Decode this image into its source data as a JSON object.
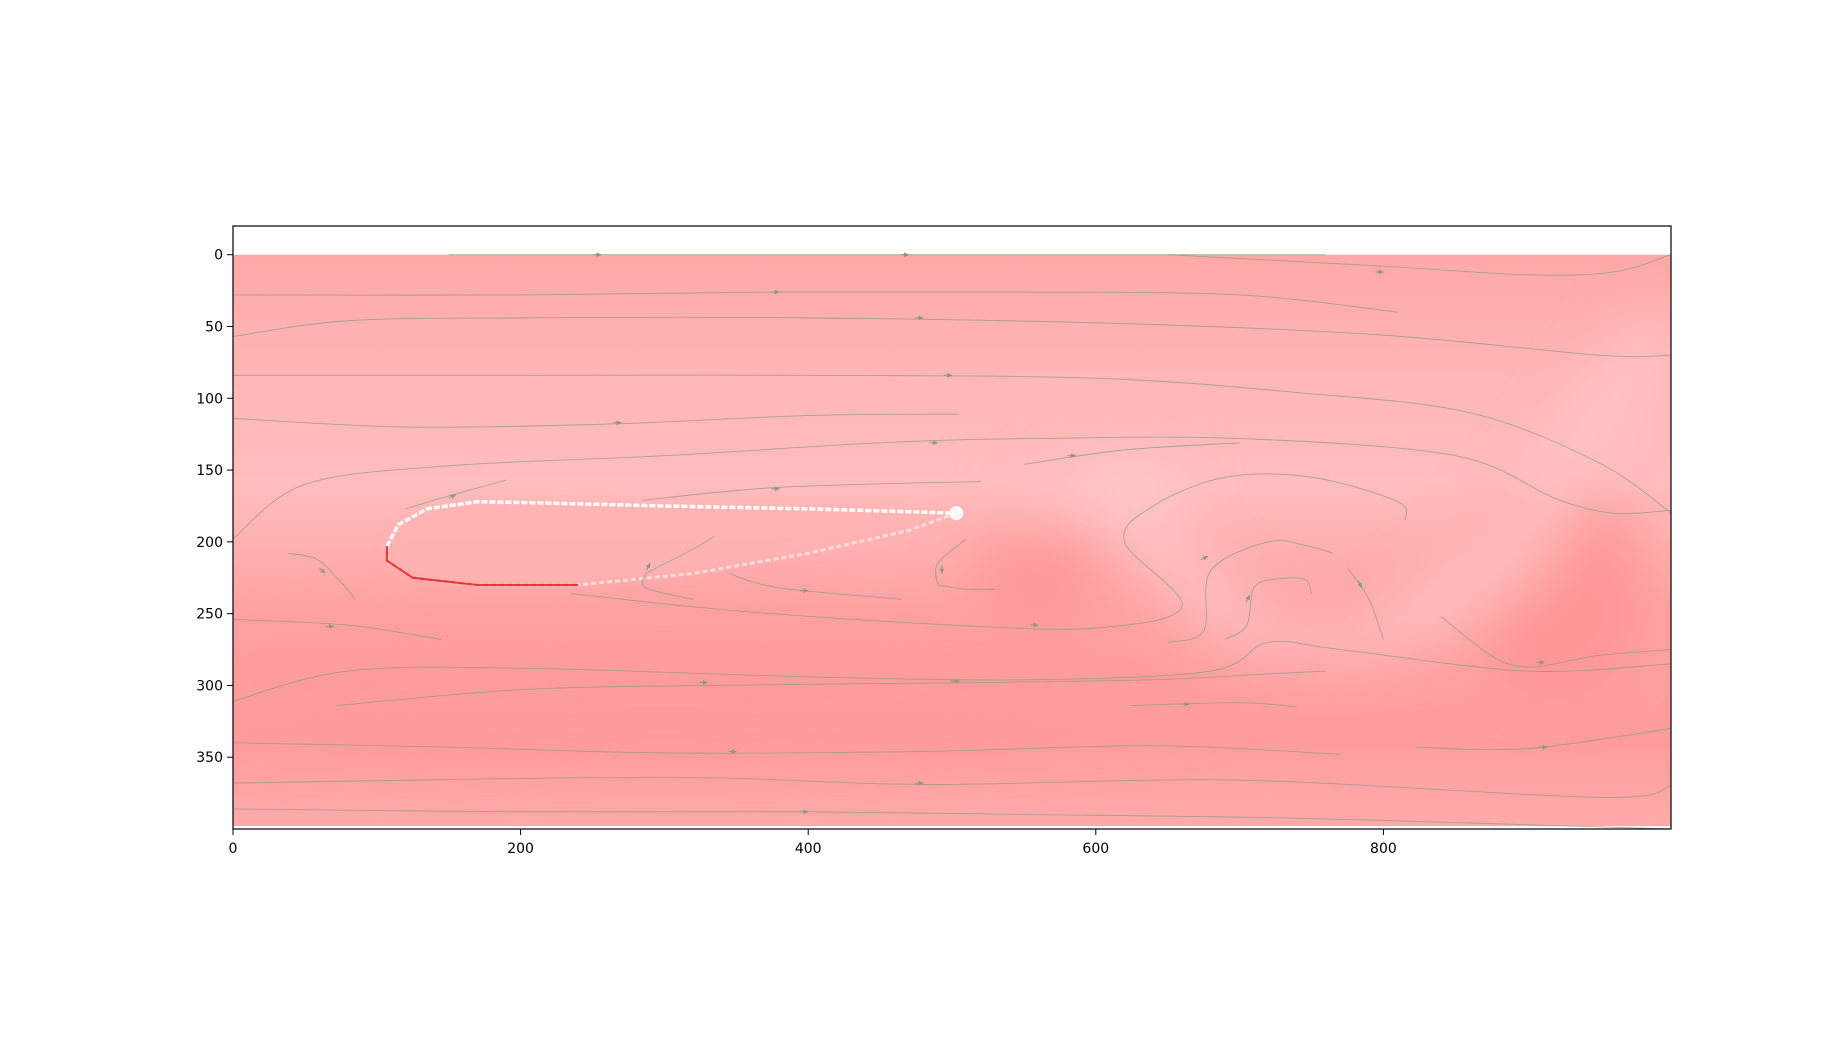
{
  "chart_data": {
    "type": "heatmap",
    "title": "",
    "xlabel": "",
    "ylabel": "",
    "xlim": [
      0,
      1000
    ],
    "ylim": [
      400,
      -20
    ],
    "y_inverted": true,
    "grid": false,
    "legend": "none",
    "field_extent": {
      "x": [
        0,
        1000
      ],
      "y": [
        0,
        398
      ]
    },
    "x_ticks": [
      {
        "value": 0,
        "label": "0"
      },
      {
        "value": 200,
        "label": "200"
      },
      {
        "value": 400,
        "label": "400"
      },
      {
        "value": 600,
        "label": "600"
      },
      {
        "value": 800,
        "label": "800"
      }
    ],
    "y_ticks": [
      {
        "value": 0,
        "label": "0"
      },
      {
        "value": 50,
        "label": "50"
      },
      {
        "value": 100,
        "label": "100"
      },
      {
        "value": 150,
        "label": "150"
      },
      {
        "value": 200,
        "label": "200"
      },
      {
        "value": 250,
        "label": "250"
      },
      {
        "value": 300,
        "label": "300"
      },
      {
        "value": 350,
        "label": "350"
      }
    ],
    "colors": {
      "field_light": "#ffbdbd",
      "field_mid": "#ffa9a9",
      "field_dark": "#ff9898",
      "streamline": "#8a9a86",
      "airfoil_edge": "#e02020"
    },
    "airfoil": {
      "leading_edge": [
        107,
        203
      ],
      "trailing_edge": [
        503,
        180
      ],
      "upper": [
        [
          107,
          203
        ],
        [
          115,
          188
        ],
        [
          135,
          177
        ],
        [
          170,
          172
        ],
        [
          220,
          173
        ],
        [
          300,
          175
        ],
        [
          400,
          177
        ],
        [
          470,
          179
        ],
        [
          503,
          180
        ]
      ],
      "lower": [
        [
          503,
          180
        ],
        [
          470,
          192
        ],
        [
          400,
          208
        ],
        [
          320,
          222
        ],
        [
          240,
          230
        ],
        [
          170,
          230
        ],
        [
          125,
          225
        ],
        [
          107,
          213
        ],
        [
          107,
          203
        ]
      ]
    },
    "streamlines": [
      [
        [
          150,
          0
        ],
        [
          320,
          0
        ],
        [
          480,
          0
        ],
        [
          620,
          0
        ],
        [
          760,
          0
        ]
      ],
      [
        [
          650,
          0
        ],
        [
          800,
          8
        ],
        [
          900,
          14
        ],
        [
          960,
          12
        ],
        [
          1000,
          0
        ]
      ],
      [
        [
          0,
          28
        ],
        [
          200,
          28
        ],
        [
          380,
          26
        ],
        [
          550,
          26
        ],
        [
          700,
          28
        ],
        [
          810,
          40
        ]
      ],
      [
        [
          0,
          57
        ],
        [
          80,
          46
        ],
        [
          200,
          44
        ],
        [
          400,
          44
        ],
        [
          620,
          48
        ],
        [
          800,
          56
        ],
        [
          950,
          70
        ],
        [
          1000,
          70
        ]
      ],
      [
        [
          0,
          84
        ],
        [
          200,
          84
        ],
        [
          400,
          84
        ],
        [
          600,
          86
        ],
        [
          740,
          96
        ],
        [
          860,
          110
        ],
        [
          950,
          145
        ],
        [
          1000,
          180
        ]
      ],
      [
        [
          0,
          114
        ],
        [
          120,
          120
        ],
        [
          260,
          118
        ],
        [
          400,
          112
        ],
        [
          505,
          111
        ]
      ],
      [
        [
          0,
          198
        ],
        [
          50,
          160
        ],
        [
          150,
          147
        ],
        [
          300,
          140
        ],
        [
          450,
          131
        ],
        [
          560,
          128
        ],
        [
          700,
          128
        ],
        [
          850,
          140
        ],
        [
          920,
          170
        ],
        [
          960,
          180
        ],
        [
          1000,
          178
        ]
      ],
      [
        [
          550,
          146
        ],
        [
          620,
          136
        ],
        [
          700,
          131
        ]
      ],
      [
        [
          38,
          208
        ],
        [
          58,
          212
        ],
        [
          75,
          228
        ],
        [
          85,
          240
        ]
      ],
      [
        [
          120,
          177
        ],
        [
          150,
          168
        ],
        [
          190,
          157
        ]
      ],
      [
        [
          285,
          171
        ],
        [
          380,
          162
        ],
        [
          520,
          158
        ]
      ],
      [
        [
          490,
          230
        ],
        [
          490,
          215
        ],
        [
          510,
          198
        ]
      ],
      [
        [
          490,
          230
        ],
        [
          510,
          233
        ],
        [
          530,
          233
        ]
      ],
      [
        [
          287,
          222
        ],
        [
          320,
          205
        ],
        [
          335,
          196
        ]
      ],
      [
        [
          287,
          222
        ],
        [
          287,
          232
        ],
        [
          320,
          240
        ]
      ],
      [
        [
          345,
          222
        ],
        [
          380,
          232
        ],
        [
          465,
          240
        ]
      ],
      [
        [
          235,
          236
        ],
        [
          350,
          248
        ],
        [
          500,
          258
        ],
        [
          600,
          260
        ],
        [
          660,
          245
        ],
        [
          620,
          200
        ],
        [
          640,
          175
        ],
        [
          690,
          155
        ],
        [
          750,
          155
        ],
        [
          810,
          172
        ],
        [
          815,
          185
        ]
      ],
      [
        [
          650,
          270
        ],
        [
          675,
          262
        ],
        [
          680,
          220
        ],
        [
          720,
          200
        ],
        [
          748,
          203
        ],
        [
          765,
          208
        ]
      ],
      [
        [
          690,
          268
        ],
        [
          705,
          258
        ],
        [
          710,
          232
        ],
        [
          725,
          226
        ],
        [
          745,
          226
        ],
        [
          750,
          236
        ]
      ],
      [
        [
          775,
          218
        ],
        [
          790,
          240
        ],
        [
          800,
          268
        ]
      ],
      [
        [
          0,
          254
        ],
        [
          80,
          258
        ],
        [
          145,
          268
        ]
      ],
      [
        [
          0,
          311
        ],
        [
          80,
          290
        ],
        [
          200,
          288
        ],
        [
          400,
          294
        ],
        [
          555,
          296
        ],
        [
          680,
          290
        ],
        [
          720,
          270
        ],
        [
          770,
          275
        ],
        [
          900,
          290
        ],
        [
          1000,
          285
        ]
      ],
      [
        [
          72,
          314
        ],
        [
          200,
          303
        ],
        [
          330,
          300
        ],
        [
          520,
          298
        ],
        [
          640,
          296
        ],
        [
          720,
          292
        ],
        [
          760,
          290
        ]
      ],
      [
        [
          625,
          314
        ],
        [
          700,
          312
        ],
        [
          740,
          315
        ]
      ],
      [
        [
          840,
          252
        ],
        [
          890,
          286
        ],
        [
          950,
          279
        ],
        [
          1000,
          275
        ]
      ],
      [
        [
          0,
          340
        ],
        [
          150,
          343
        ],
        [
          300,
          347
        ],
        [
          480,
          346
        ],
        [
          640,
          342
        ],
        [
          770,
          348
        ]
      ],
      [
        [
          823,
          343
        ],
        [
          900,
          344
        ],
        [
          1000,
          330
        ]
      ],
      [
        [
          0,
          368
        ],
        [
          300,
          364
        ],
        [
          480,
          369
        ],
        [
          700,
          366
        ],
        [
          950,
          378
        ],
        [
          1000,
          370
        ]
      ],
      [
        [
          0,
          386
        ],
        [
          200,
          388
        ],
        [
          400,
          388
        ],
        [
          560,
          390
        ],
        [
          720,
          392
        ],
        [
          900,
          397
        ],
        [
          1000,
          400
        ]
      ]
    ],
    "arrows": [
      {
        "at": [
          256,
          0
        ],
        "dir": [
          1,
          0
        ]
      },
      {
        "at": [
          470,
          0
        ],
        "dir": [
          1,
          0
        ]
      },
      {
        "at": [
          800,
          12
        ],
        "dir": [
          1,
          0
        ]
      },
      {
        "at": [
          380,
          26
        ],
        "dir": [
          1,
          0
        ]
      },
      {
        "at": [
          480,
          44
        ],
        "dir": [
          1,
          0
        ]
      },
      {
        "at": [
          500,
          84
        ],
        "dir": [
          1,
          0
        ]
      },
      {
        "at": [
          270,
          117
        ],
        "dir": [
          1,
          0
        ]
      },
      {
        "at": [
          490,
          131
        ],
        "dir": [
          1,
          0
        ]
      },
      {
        "at": [
          586,
          140
        ],
        "dir": [
          1,
          0
        ]
      },
      {
        "at": [
          64,
          222
        ],
        "dir": [
          1,
          1
        ]
      },
      {
        "at": [
          155,
          167
        ],
        "dir": [
          1,
          -0.5
        ]
      },
      {
        "at": [
          380,
          163
        ],
        "dir": [
          1,
          0
        ]
      },
      {
        "at": [
          493,
          222
        ],
        "dir": [
          0,
          1
        ]
      },
      {
        "at": [
          290,
          215
        ],
        "dir": [
          0.5,
          -1
        ]
      },
      {
        "at": [
          400,
          234
        ],
        "dir": [
          1,
          0
        ]
      },
      {
        "at": [
          560,
          258
        ],
        "dir": [
          1,
          0
        ]
      },
      {
        "at": [
          678,
          210
        ],
        "dir": [
          1,
          -0.5
        ]
      },
      {
        "at": [
          707,
          237
        ],
        "dir": [
          0.5,
          -1
        ]
      },
      {
        "at": [
          785,
          232
        ],
        "dir": [
          0.5,
          1
        ]
      },
      {
        "at": [
          70,
          259
        ],
        "dir": [
          1,
          0
        ]
      },
      {
        "at": [
          330,
          298
        ],
        "dir": [
          1,
          0
        ]
      },
      {
        "at": [
          505,
          297
        ],
        "dir": [
          1,
          0
        ]
      },
      {
        "at": [
          665,
          313
        ],
        "dir": [
          1,
          0
        ]
      },
      {
        "at": [
          912,
          284
        ],
        "dir": [
          1,
          0
        ]
      },
      {
        "at": [
          350,
          346
        ],
        "dir": [
          1,
          0
        ]
      },
      {
        "at": [
          914,
          343
        ],
        "dir": [
          1,
          0
        ]
      },
      {
        "at": [
          480,
          368
        ],
        "dir": [
          1,
          0
        ]
      },
      {
        "at": [
          400,
          388
        ],
        "dir": [
          1,
          0
        ]
      }
    ]
  }
}
